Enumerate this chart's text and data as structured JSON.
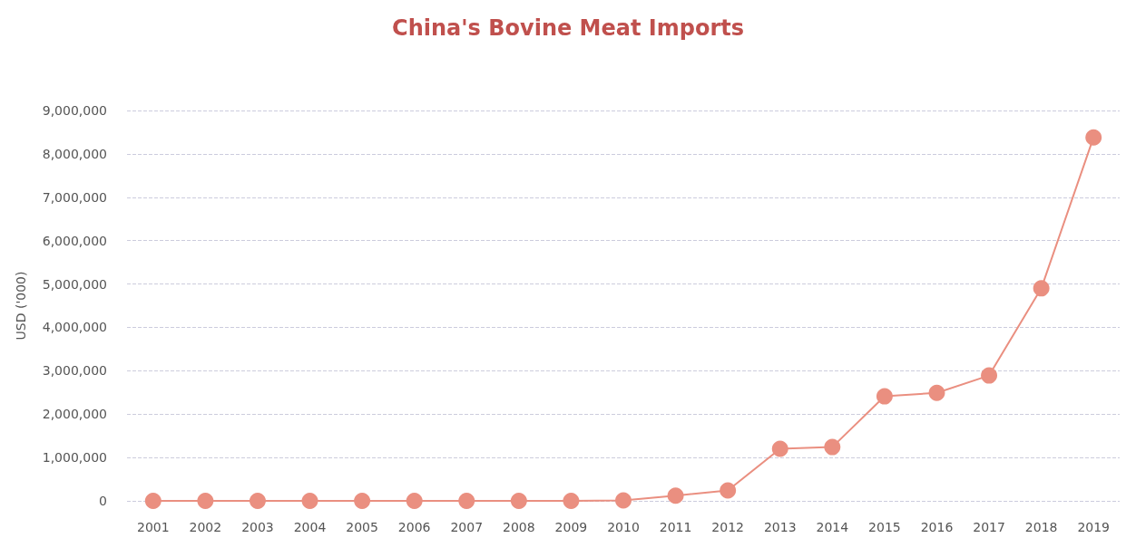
{
  "chart_data": {
    "type": "line",
    "title": "China's Bovine Meat Imports",
    "ylabel": "USD ('000)",
    "categories": [
      "2001",
      "2002",
      "2003",
      "2004",
      "2005",
      "2006",
      "2007",
      "2008",
      "2009",
      "2010",
      "2011",
      "2012",
      "2013",
      "2014",
      "2015",
      "2016",
      "2017",
      "2018",
      "2019"
    ],
    "series": [
      {
        "color": "#ea8f80",
        "values": [
          0,
          0,
          0,
          0,
          0,
          0,
          0,
          0,
          0,
          10000,
          120000,
          240000,
          1200000,
          1240000,
          2410000,
          2490000,
          2890000,
          4900000,
          8380000
        ]
      }
    ],
    "ylim": [
      0,
      9000000
    ],
    "yticks": [
      0,
      {
        "value": 1000000,
        "label": "1,000,000"
      },
      {
        "value": 2000000,
        "label": "2,000,000"
      },
      {
        "value": 3000000,
        "label": "3,000,000"
      },
      {
        "value": 4000000,
        "label": "4,000,000"
      },
      {
        "value": 5000000,
        "label": "5,000,000"
      },
      {
        "value": 6000000,
        "label": "6,000,000"
      },
      {
        "value": 7000000,
        "label": "7,000,000"
      },
      {
        "value": 8000000,
        "label": "8,000,000"
      },
      {
        "value": 9000000,
        "label": "9,000,000"
      }
    ],
    "grid": "y",
    "marker": "circle",
    "line_style": "solid"
  }
}
